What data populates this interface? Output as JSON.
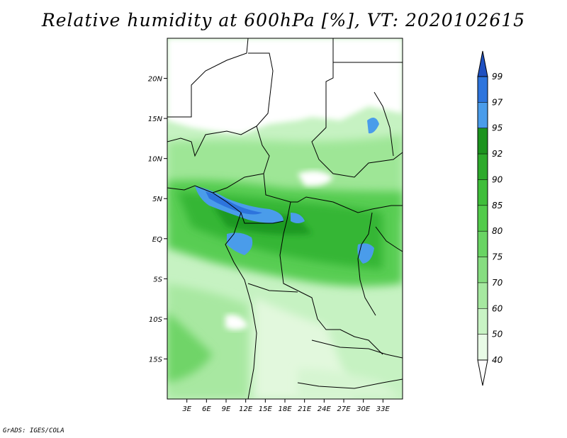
{
  "title": "Relative humidity at 600hPa [%], VT: 2020102615",
  "credit": "GrADS: IGES/COLA",
  "map": {
    "lon_range": [
      0,
      36
    ],
    "lat_range": [
      -20,
      25
    ],
    "lon_ticks": [
      {
        "lon": 3,
        "label": "3E"
      },
      {
        "lon": 6,
        "label": "6E"
      },
      {
        "lon": 9,
        "label": "9E"
      },
      {
        "lon": 12,
        "label": "12E"
      },
      {
        "lon": 15,
        "label": "15E"
      },
      {
        "lon": 18,
        "label": "18E"
      },
      {
        "lon": 21,
        "label": "21E"
      },
      {
        "lon": 24,
        "label": "24E"
      },
      {
        "lon": 27,
        "label": "27E"
      },
      {
        "lon": 30,
        "label": "30E"
      },
      {
        "lon": 33,
        "label": "33E"
      }
    ],
    "lat_ticks": [
      {
        "lat": 20,
        "label": "20N"
      },
      {
        "lat": 15,
        "label": "15N"
      },
      {
        "lat": 10,
        "label": "10N"
      },
      {
        "lat": 5,
        "label": "5N"
      },
      {
        "lat": 0,
        "label": "EQ"
      },
      {
        "lat": -5,
        "label": "5S"
      },
      {
        "lat": -10,
        "label": "10S"
      },
      {
        "lat": -15,
        "label": "15S"
      }
    ]
  },
  "colorbar": {
    "levels": [
      "40",
      "50",
      "60",
      "70",
      "75",
      "80",
      "85",
      "90",
      "92",
      "95",
      "97",
      "99"
    ],
    "colors": [
      "#e8fbe6",
      "#c8f3c4",
      "#a6e8a0",
      "#86dd80",
      "#69d463",
      "#52cb4b",
      "#3fbe3a",
      "#2daa2b",
      "#1c931e",
      "#4a9cea",
      "#2d74dd",
      "#1f50c0"
    ],
    "below_color": "#ffffff",
    "above_color": "#1f50c0"
  }
}
